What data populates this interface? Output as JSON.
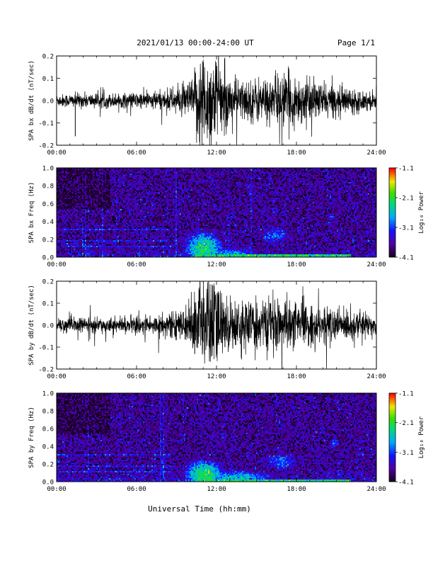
{
  "header": {
    "title": "2021/01/13  00:00-24:00 UT",
    "page": "Page 1/1"
  },
  "footer": {
    "xlabel": "Universal Time (hh:mm)"
  },
  "chart_data": [
    {
      "type": "line",
      "ylabel": "SPA bx dB/dt (nT/sec)",
      "xlim_hours": [
        0,
        24
      ],
      "ylim": [
        -0.2,
        0.2
      ],
      "x_ticks": [
        "00:00",
        "06:00",
        "12:00",
        "18:00",
        "24:00"
      ],
      "y_ticks": [
        "-0.2",
        "-0.1",
        "0.0",
        "0.1",
        "0.2"
      ],
      "envelope": {
        "x_hours": [
          0,
          2,
          4,
          6,
          8,
          9.5,
          10.3,
          10.6,
          11,
          12,
          12.5,
          13,
          14,
          15,
          16,
          17,
          18,
          19,
          20,
          21,
          22,
          23,
          24
        ],
        "amplitude": [
          0.025,
          0.03,
          0.028,
          0.032,
          0.04,
          0.06,
          0.09,
          0.2,
          0.2,
          0.18,
          0.12,
          0.1,
          0.08,
          0.09,
          0.09,
          0.11,
          0.1,
          0.08,
          0.07,
          0.06,
          0.05,
          0.04,
          0.035
        ]
      },
      "spikes": [
        {
          "x_hours": 1.4,
          "y": -0.16
        }
      ]
    },
    {
      "type": "heatmap",
      "ylabel": "SPA bx Freq (Hz)",
      "colorbar_label": "Log₁₀ Power",
      "colorbar_ticks": [
        "-1.1",
        "-2.1",
        "-3.1",
        "-4.1"
      ],
      "colorbar_range": [
        -4.1,
        -1.1
      ],
      "xlim_hours": [
        0,
        24
      ],
      "ylim": [
        0,
        1.0
      ],
      "x_ticks": [
        "00:00",
        "06:00",
        "12:00",
        "18:00",
        "24:00"
      ],
      "y_ticks": [
        "0.0",
        "0.2",
        "0.4",
        "0.6",
        "0.8",
        "1.0"
      ],
      "background_power": -3.7,
      "lines_hz": [
        0.31,
        0.19,
        0.12
      ],
      "lines_hz_extent_hours": [
        0,
        8.5
      ],
      "bursts": [
        {
          "x_hours": 11.0,
          "y_hz": 0.1,
          "sx": 1.0,
          "sy": 0.14,
          "peak": -2.3
        },
        {
          "x_hours": 16.3,
          "y_hz": 0.25,
          "sx": 1.0,
          "sy": 0.08,
          "peak": -3.0
        },
        {
          "x_hours": 20.6,
          "y_hz": 0.46,
          "sx": 0.25,
          "sy": 0.04,
          "peak": -3.1
        },
        {
          "x_hours": 13.0,
          "y_hz": 0.05,
          "sx": 1.5,
          "sy": 0.05,
          "peak": -2.8
        }
      ]
    },
    {
      "type": "line",
      "ylabel": "SPA by dB/dt (nT/sec)",
      "xlim_hours": [
        0,
        24
      ],
      "ylim": [
        -0.2,
        0.2
      ],
      "x_ticks": [
        "00:00",
        "06:00",
        "12:00",
        "18:00",
        "24:00"
      ],
      "y_ticks": [
        "-0.2",
        "-0.1",
        "0.0",
        "0.1",
        "0.2"
      ],
      "envelope": {
        "x_hours": [
          0,
          2,
          4,
          6,
          8,
          9.5,
          10.2,
          10.5,
          11,
          12,
          12.5,
          13,
          14,
          15,
          16,
          17,
          18,
          19,
          20,
          21,
          22,
          23,
          24
        ],
        "amplitude": [
          0.03,
          0.03,
          0.028,
          0.035,
          0.045,
          0.06,
          0.09,
          0.2,
          0.2,
          0.2,
          0.12,
          0.11,
          0.09,
          0.1,
          0.1,
          0.1,
          0.09,
          0.08,
          0.07,
          0.07,
          0.06,
          0.05,
          0.045
        ]
      },
      "spikes": []
    },
    {
      "type": "heatmap",
      "ylabel": "SPA by Freq (Hz)",
      "colorbar_label": "Log₁₀ Power",
      "colorbar_ticks": [
        "-1.1",
        "-2.1",
        "-3.1",
        "-4.1"
      ],
      "colorbar_range": [
        -4.1,
        -1.1
      ],
      "xlim_hours": [
        0,
        24
      ],
      "ylim": [
        0,
        1.0
      ],
      "x_ticks": [
        "00:00",
        "06:00",
        "12:00",
        "18:00",
        "24:00"
      ],
      "y_ticks": [
        "0.0",
        "0.2",
        "0.4",
        "0.6",
        "0.8",
        "1.0"
      ],
      "background_power": -3.7,
      "lines_hz": [
        0.31,
        0.19,
        0.12
      ],
      "lines_hz_extent_hours": [
        0,
        8.5
      ],
      "bursts": [
        {
          "x_hours": 11.0,
          "y_hz": 0.08,
          "sx": 1.0,
          "sy": 0.12,
          "peak": -2.2
        },
        {
          "x_hours": 16.8,
          "y_hz": 0.23,
          "sx": 1.1,
          "sy": 0.08,
          "peak": -3.0
        },
        {
          "x_hours": 20.8,
          "y_hz": 0.44,
          "sx": 0.3,
          "sy": 0.04,
          "peak": -3.1
        },
        {
          "x_hours": 13.5,
          "y_hz": 0.05,
          "sx": 2.0,
          "sy": 0.06,
          "peak": -2.6
        }
      ]
    }
  ]
}
